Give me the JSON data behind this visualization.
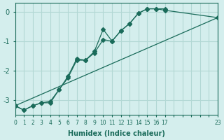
{
  "xlabel": "Humidex (Indice chaleur)",
  "bg_color": "#d4eeed",
  "grid_color": "#b2d8d4",
  "line_color": "#1a6b5a",
  "xlim": [
    0,
    23
  ],
  "ylim": [
    -3.5,
    0.3
  ],
  "yticks": [
    0,
    -1,
    -2,
    -3
  ],
  "xtick_labels": [
    "0",
    "1",
    "2",
    "3",
    "4",
    "5",
    "6",
    "7",
    "8",
    "9",
    "10",
    "11",
    "12",
    "13",
    "14",
    "15",
    "16",
    "17",
    "",
    "",
    "",
    "",
    "",
    "23"
  ],
  "line1_x": [
    0,
    1,
    2,
    3,
    4,
    5,
    6,
    7,
    8,
    9,
    10,
    11,
    12,
    13,
    14,
    15,
    16,
    17
  ],
  "line1_y": [
    -3.2,
    -3.35,
    -3.2,
    -3.1,
    -3.1,
    -2.65,
    -2.2,
    -1.6,
    -1.65,
    -1.35,
    -0.6,
    -1.0,
    -0.65,
    -0.4,
    -0.05,
    0.1,
    0.1,
    0.1
  ],
  "line2_x": [
    0,
    1,
    2,
    3,
    4,
    5,
    6,
    7,
    8,
    9,
    10,
    11,
    12,
    13,
    14,
    15,
    16,
    17,
    23
  ],
  "line2_y": [
    -3.2,
    -3.35,
    -3.2,
    -3.1,
    -3.05,
    -2.65,
    -2.25,
    -1.65,
    -1.65,
    -1.4,
    -0.95,
    -1.0,
    -0.65,
    -0.4,
    -0.05,
    0.1,
    0.1,
    0.05,
    -0.2
  ],
  "line3_x": [
    0,
    23
  ],
  "line3_y": [
    -3.2,
    -0.2
  ],
  "markersize": 3
}
